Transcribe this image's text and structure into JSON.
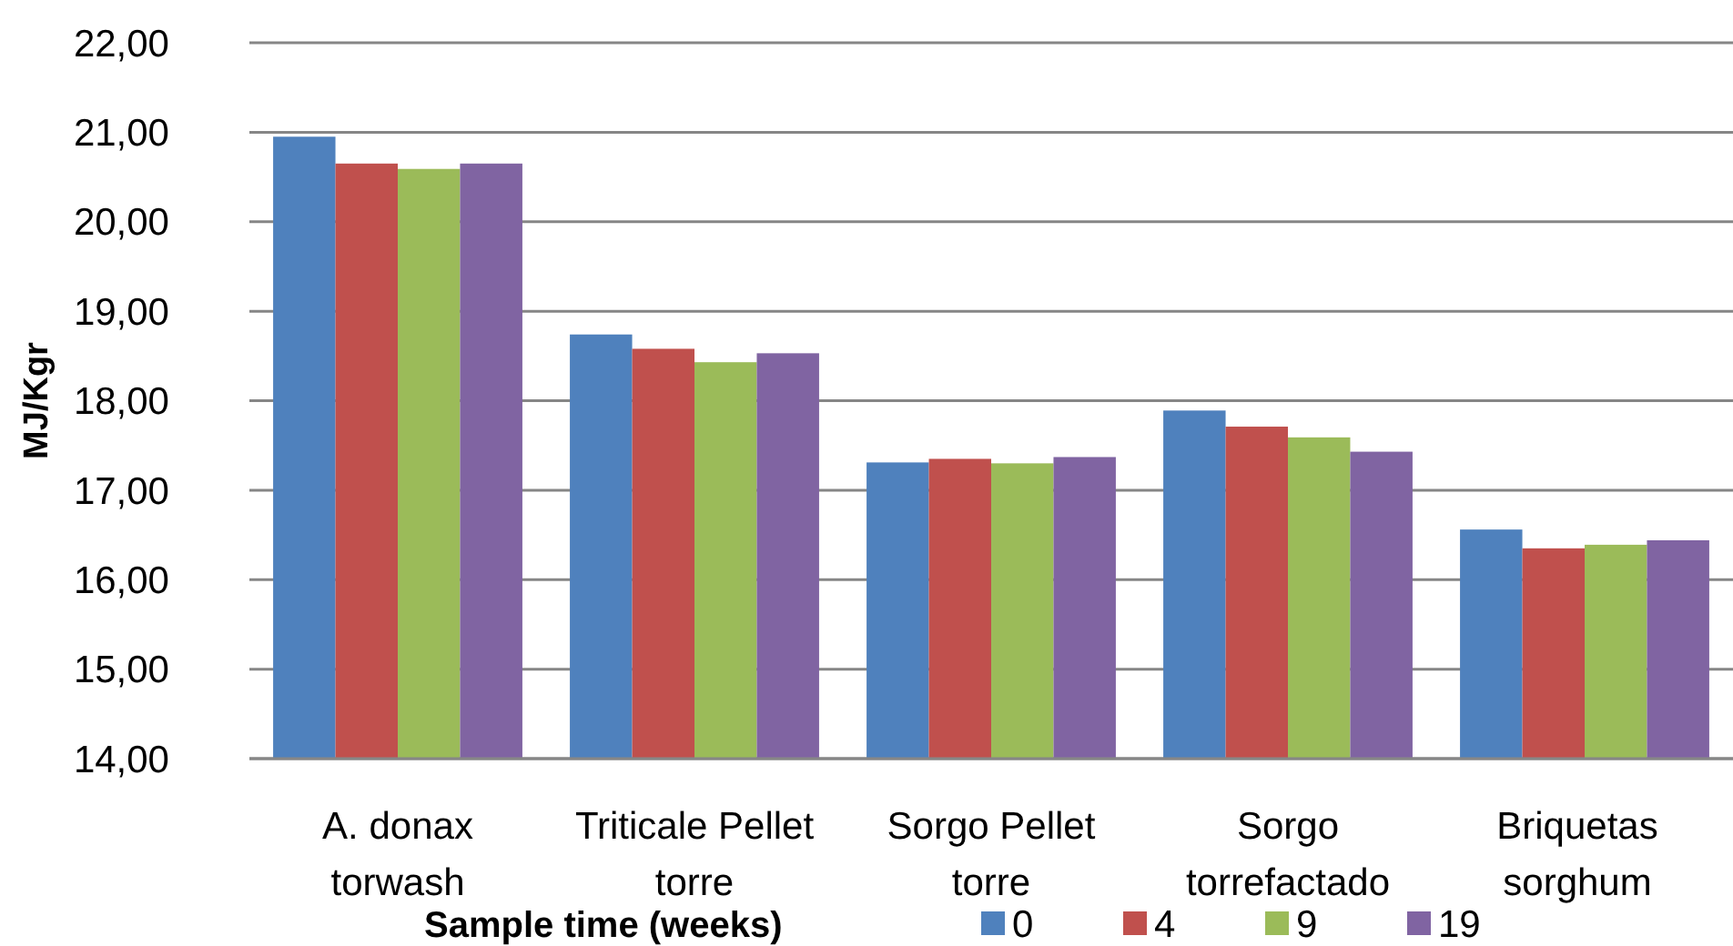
{
  "chart_data": {
    "type": "bar",
    "ylabel": "MJ/Kgr",
    "legend_title": "Sample time (weeks)",
    "categories": [
      "A. donax torwash",
      "Triticale Pellet torre",
      "Sorgo Pellet torre",
      "Sorgo torrefactado",
      "Briquetas sorghum"
    ],
    "series": [
      {
        "name": "0",
        "color": "#4f81bd",
        "values": [
          20.95,
          18.74,
          17.31,
          17.89,
          16.56
        ]
      },
      {
        "name": "4",
        "color": "#c0504d",
        "values": [
          20.65,
          18.58,
          17.35,
          17.71,
          16.35
        ]
      },
      {
        "name": "9",
        "color": "#9bbb59",
        "values": [
          20.59,
          18.43,
          17.3,
          17.59,
          16.39
        ]
      },
      {
        "name": "19",
        "color": "#8064a2",
        "values": [
          20.65,
          18.53,
          17.37,
          17.43,
          16.44
        ]
      }
    ],
    "ylim": [
      14,
      22
    ],
    "yticks": [
      {
        "value": 14,
        "label": "14,00"
      },
      {
        "value": 15,
        "label": "15,00"
      },
      {
        "value": 16,
        "label": "16,00"
      },
      {
        "value": 17,
        "label": "17,00"
      },
      {
        "value": 18,
        "label": "18,00"
      },
      {
        "value": 19,
        "label": "19,00"
      },
      {
        "value": 20,
        "label": "20,00"
      },
      {
        "value": 21,
        "label": "21,00"
      },
      {
        "value": 22,
        "label": "22,00"
      }
    ],
    "grid": "y",
    "legend": "bottom"
  }
}
